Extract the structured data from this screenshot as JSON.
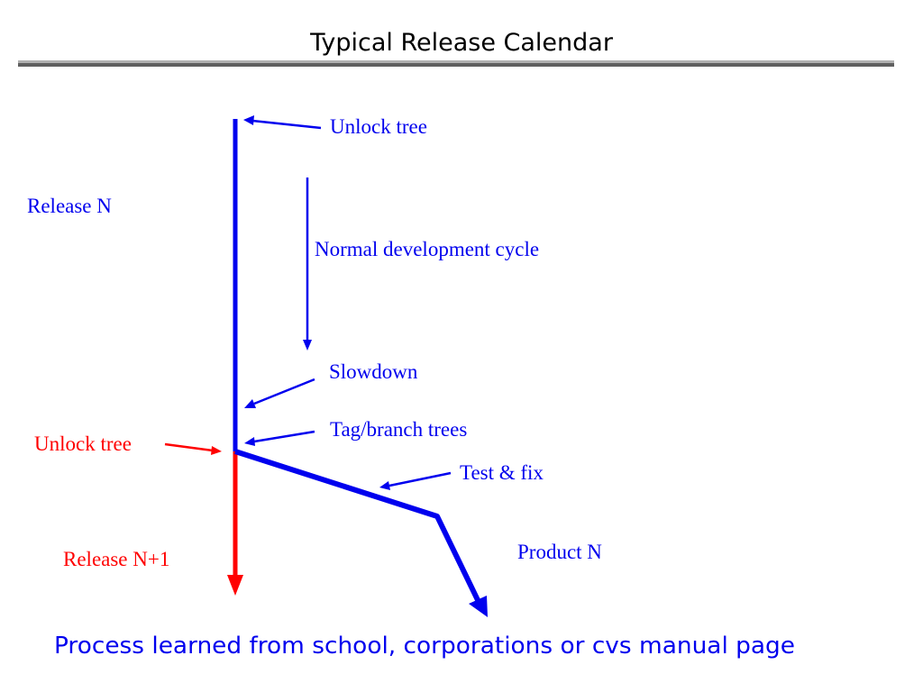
{
  "slide": {
    "title": "Typical Release Calendar",
    "footer": "Process learned from school, corporations or cvs manual page"
  },
  "labels": {
    "unlock_tree_top": "Unlock tree",
    "release_n": "Release N",
    "normal_cycle": "Normal development cycle",
    "slowdown": "Slowdown",
    "tag_branch": "Tag/branch trees",
    "unlock_tree_red": "Unlock tree",
    "test_fix": "Test & fix",
    "release_n1": "Release N+1",
    "product_n": "Product N"
  },
  "colors": {
    "blue": "#0000ee",
    "red": "#ff0000",
    "rule_light": "#b0b0b0",
    "rule_dark": "#606060"
  }
}
